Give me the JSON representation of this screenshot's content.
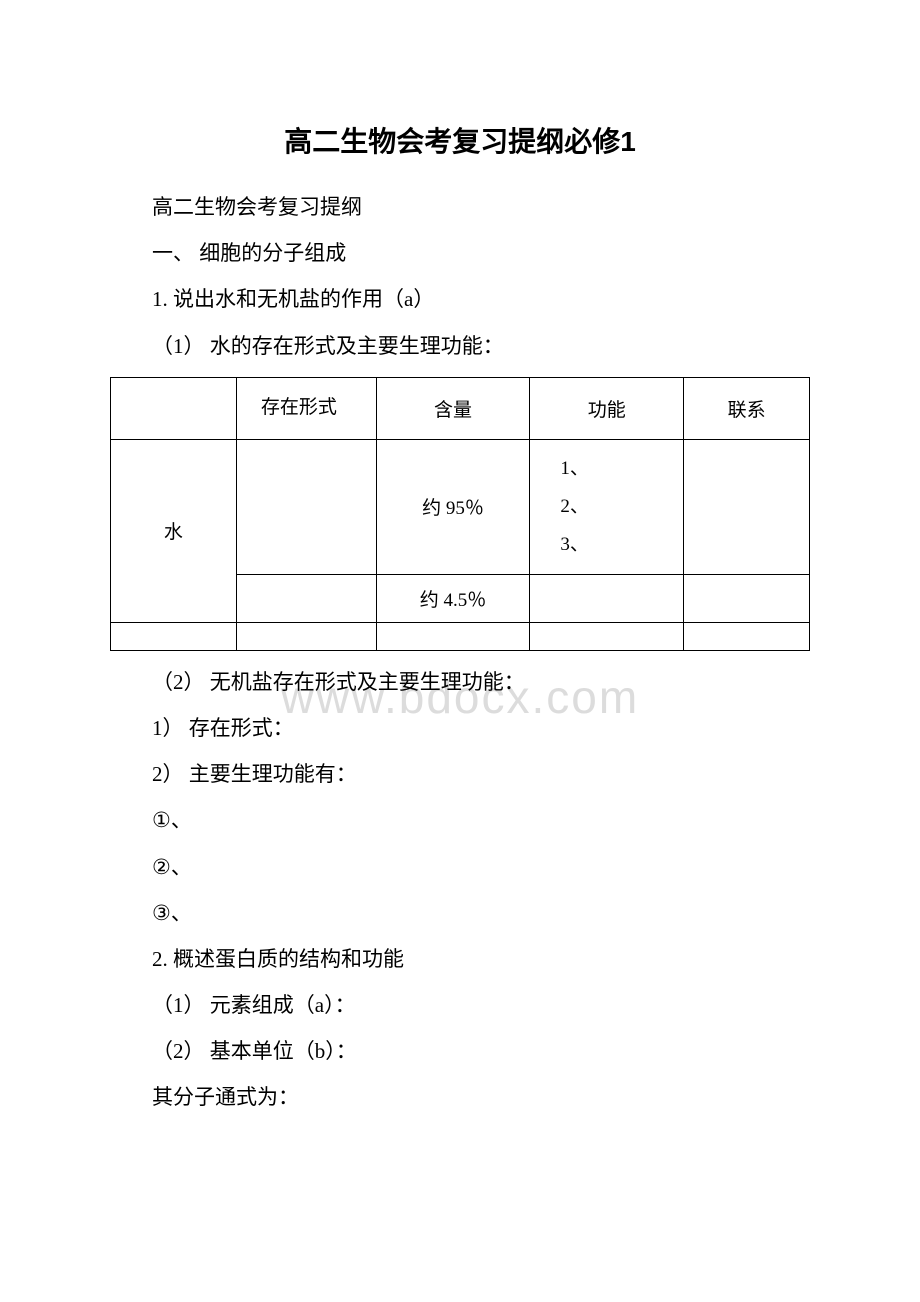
{
  "title": "高二生物会考复习提纲必修1",
  "lines": {
    "l1": "高二生物会考复习提纲",
    "l2": "一、 细胞的分子组成",
    "l3": "1. 说出水和无机盐的作用（a）",
    "l4": "（1） 水的存在形式及主要生理功能：",
    "l5": "（2） 无机盐存在形式及主要生理功能：",
    "l6": "1） 存在形式：",
    "l7": "2） 主要生理功能有：",
    "l8": "①、",
    "l9": " ②、",
    "l10": " ③、",
    "l11": "2. 概述蛋白质的结构和功能",
    "l12": "（1） 元素组成（a）：",
    "l13": "（2） 基本单位（b）：",
    "l14": "其分子通式为："
  },
  "table": {
    "header": {
      "c1": "",
      "c2": "存在形式",
      "c3": "含量",
      "c4": "功能",
      "c5": "联系"
    },
    "row_water_label": "水",
    "row1": {
      "c2": "",
      "c3": "约 95％",
      "c4_1": "1、",
      "c4_2": "2、",
      "c4_3": "3、",
      "c5": ""
    },
    "row2": {
      "c2": "",
      "c3": "约 4.5％",
      "c4": "",
      "c5": ""
    }
  },
  "watermark": "www.bdocx.com"
}
